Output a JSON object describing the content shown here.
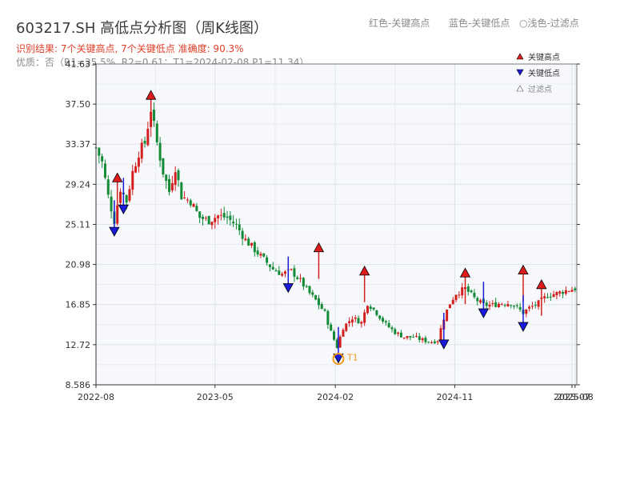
{
  "header": {
    "title": "603217.SH 高低点分析图（周K线图）",
    "legend_red": "红色-关键高点",
    "legend_blue": "蓝色-关键低点",
    "legend_filtered": "○浅色-过滤点",
    "result_text": "识别结果: 7个关键高点, 7个关键低点  准确度: 90.3%",
    "quality_text": "优质：否（R1=35.5%, R2=0.61；T1=2024-02-08 P1=11.34）"
  },
  "chart_data": {
    "type": "candlestick",
    "ylim": [
      8.586,
      41.63
    ],
    "yticks": [
      "41.63",
      "37.50",
      "33.37",
      "29.24",
      "25.11",
      "20.98",
      "16.85",
      "12.72",
      "8.586"
    ],
    "xticks": [
      "2022-08",
      "2023-05",
      "2024-02",
      "2024-11",
      "2025-07",
      "2025-08"
    ],
    "x_start": "2022-08-01",
    "x_end": "2025-08-08",
    "legend": {
      "high": "关键高点",
      "low": "关键低点",
      "filtered": "过滤点"
    },
    "t1_label": "T1",
    "key_highs": [
      {
        "date": "2022-09-19",
        "value": 29.9
      },
      {
        "date": "2022-12-05",
        "value": 38.4
      },
      {
        "date": "2023-12-25",
        "value": 22.7
      },
      {
        "date": "2024-04-08",
        "value": 20.3
      },
      {
        "date": "2024-11-25",
        "value": 20.1
      },
      {
        "date": "2025-04-07",
        "value": 20.4
      },
      {
        "date": "2025-05-19",
        "value": 18.9
      }
    ],
    "key_lows": [
      {
        "date": "2022-09-12",
        "value": 24.4
      },
      {
        "date": "2022-10-03",
        "value": 26.7
      },
      {
        "date": "2023-10-16",
        "value": 18.6
      },
      {
        "date": "2024-02-08",
        "value": 11.34
      },
      {
        "date": "2024-10-07",
        "value": 12.8
      },
      {
        "date": "2025-01-06",
        "value": 16.0
      },
      {
        "date": "2025-04-07",
        "value": 14.6
      }
    ],
    "t1": {
      "date": "2024-02-08",
      "value": 11.34
    },
    "price_path": [
      [
        "2022-08-01",
        33.0
      ],
      [
        "2022-08-15",
        31.5
      ],
      [
        "2022-08-29",
        28.0
      ],
      [
        "2022-09-12",
        25.5
      ],
      [
        "2022-09-26",
        28.8
      ],
      [
        "2022-10-10",
        27.5
      ],
      [
        "2022-10-24",
        30.5
      ],
      [
        "2022-11-07",
        32.5
      ],
      [
        "2022-11-21",
        33.5
      ],
      [
        "2022-12-05",
        37.0
      ],
      [
        "2022-12-19",
        33.5
      ],
      [
        "2023-01-02",
        30.5
      ],
      [
        "2023-01-16",
        28.5
      ],
      [
        "2023-01-30",
        31.0
      ],
      [
        "2023-02-13",
        28.0
      ],
      [
        "2023-03-06",
        27.5
      ],
      [
        "2023-03-27",
        25.8
      ],
      [
        "2023-04-17",
        25.5
      ],
      [
        "2023-05-08",
        26.0
      ],
      [
        "2023-05-29",
        25.8
      ],
      [
        "2023-06-19",
        25.0
      ],
      [
        "2023-07-10",
        23.5
      ],
      [
        "2023-07-31",
        22.5
      ],
      [
        "2023-08-21",
        21.5
      ],
      [
        "2023-09-11",
        20.5
      ],
      [
        "2023-10-02",
        20.0
      ],
      [
        "2023-10-23",
        20.3
      ],
      [
        "2023-11-13",
        19.3
      ],
      [
        "2023-12-04",
        18.0
      ],
      [
        "2023-12-18",
        17.3
      ],
      [
        "2024-01-08",
        16.0
      ],
      [
        "2024-01-22",
        14.0
      ],
      [
        "2024-02-05",
        12.5
      ],
      [
        "2024-02-19",
        14.5
      ],
      [
        "2024-03-11",
        15.5
      ],
      [
        "2024-04-01",
        15.0
      ],
      [
        "2024-04-15",
        17.0
      ],
      [
        "2024-05-06",
        16.0
      ],
      [
        "2024-05-27",
        14.8
      ],
      [
        "2024-06-17",
        14.0
      ],
      [
        "2024-07-08",
        13.5
      ],
      [
        "2024-07-29",
        13.5
      ],
      [
        "2024-08-19",
        13.2
      ],
      [
        "2024-09-09",
        13.0
      ],
      [
        "2024-09-23",
        13.2
      ],
      [
        "2024-10-07",
        15.5
      ],
      [
        "2024-10-21",
        17.0
      ],
      [
        "2024-11-04",
        18.0
      ],
      [
        "2024-11-25",
        18.5
      ],
      [
        "2024-12-16",
        17.5
      ],
      [
        "2025-01-06",
        16.8
      ],
      [
        "2025-01-27",
        16.8
      ],
      [
        "2025-02-17",
        17.0
      ],
      [
        "2025-03-10",
        17.0
      ],
      [
        "2025-04-07",
        16.0
      ],
      [
        "2025-04-21",
        16.5
      ],
      [
        "2025-05-12",
        17.0
      ],
      [
        "2025-06-02",
        17.8
      ],
      [
        "2025-06-23",
        18.0
      ],
      [
        "2025-07-14",
        18.3
      ],
      [
        "2025-08-04",
        18.5
      ]
    ]
  }
}
